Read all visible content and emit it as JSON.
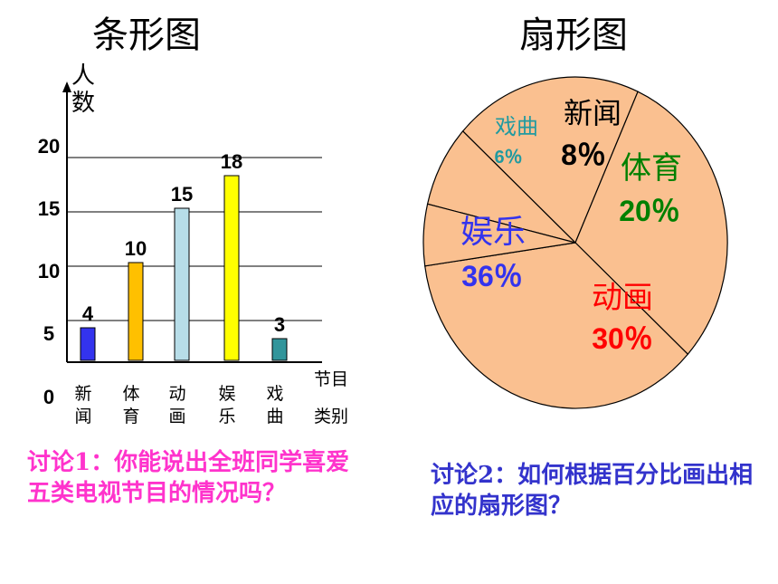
{
  "titles": {
    "bar": "条形图",
    "pie": "扇形图"
  },
  "questions": {
    "q1": "讨论1：你能说出全班同学喜爱五类电视节目的情况吗？",
    "q2": "讨论2：如何根据百分比画出相应的扇形图？"
  },
  "colors": {
    "pie_fill": "#fac090",
    "q1": "#ff33cc",
    "q2": "#3333cc"
  },
  "chart_data": [
    {
      "type": "bar",
      "title": "条形图",
      "ylabel": "人数",
      "xlabel": "节目类别",
      "categories": [
        "新闻",
        "体育",
        "动画",
        "娱乐",
        "戏曲"
      ],
      "values": [
        4,
        10,
        15,
        18,
        3
      ],
      "data_labels": [
        "4",
        "10",
        "15",
        "18",
        "3"
      ],
      "yticks": [
        "0",
        "5",
        "10",
        "15",
        "20"
      ],
      "ylim": [
        0,
        20
      ],
      "grid": true,
      "colors": [
        "#3333ee",
        "#ffc000",
        "#b7dde8",
        "#ffff00",
        "#31959b"
      ]
    },
    {
      "type": "pie",
      "title": "扇形图",
      "labels": [
        "新闻",
        "体育",
        "动画",
        "娱乐",
        "戏曲"
      ],
      "values": [
        8,
        20,
        30,
        36,
        6
      ],
      "value_labels": [
        "8％",
        "20％",
        "30％",
        "36％",
        "6％"
      ],
      "label_colors": [
        "#000000",
        "#008000",
        "#ff0000",
        "#3333ee",
        "#219aa0"
      ]
    }
  ]
}
